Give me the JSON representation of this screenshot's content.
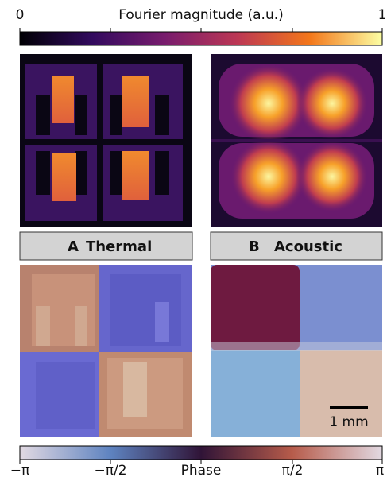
{
  "colorbars": {
    "magnitude": {
      "title": "Fourier magnitude (a.u.)",
      "ticks": [
        0,
        1
      ]
    },
    "phase": {
      "title": "Phase",
      "tick_labels": [
        "−π",
        "−π/2",
        "π/2",
        "π"
      ]
    }
  },
  "panels": [
    {
      "letter": "A",
      "title": "Thermal"
    },
    {
      "letter": "B",
      "title": "Acoustic"
    }
  ],
  "scale_bar": "1 mm"
}
